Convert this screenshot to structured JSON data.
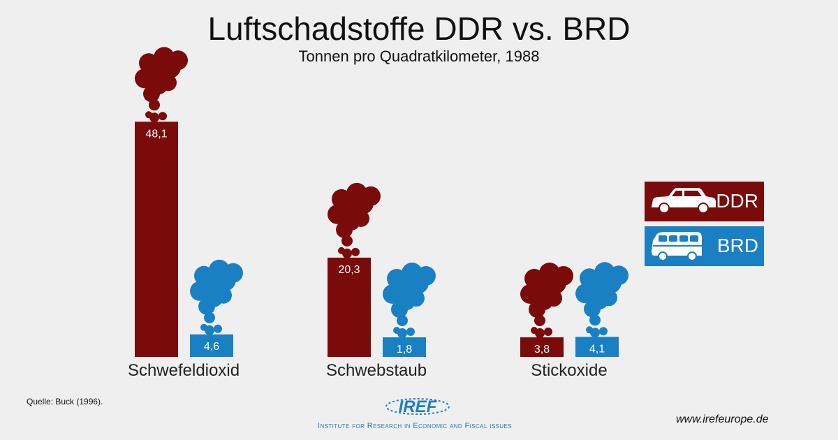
{
  "title": "Luftschadstoffe DDR vs. BRD",
  "subtitle": "Tonnen pro Quadratkilometer, 1988",
  "chart_data": {
    "type": "bar",
    "title": "Luftschadstoffe DDR vs. BRD",
    "subtitle": "Tonnen pro Quadratkilometer, 1988",
    "categories": [
      "Schwefeldioxid",
      "Schwebstaub",
      "Stickoxide"
    ],
    "series": [
      {
        "name": "DDR",
        "values": [
          48.1,
          20.3,
          3.8
        ],
        "labels": [
          "48,1",
          "20,3",
          "3,8"
        ],
        "color": "#7b0a0a"
      },
      {
        "name": "BRD",
        "values": [
          4.6,
          1.8,
          4.1
        ],
        "labels": [
          "4,6",
          "1,8",
          "4,1"
        ],
        "color": "#1a80c4"
      }
    ],
    "xlabel": "",
    "ylabel": "",
    "grid": false,
    "legend": "right"
  },
  "legend": {
    "ddr_label": "DDR",
    "brd_label": "BRD"
  },
  "footer": {
    "source": "Quelle: Buck (1996).",
    "website": "www.irefeurope.de",
    "logo_text": "IREF",
    "tagline": "Institute for Research in Economic and Fiscal issues"
  },
  "colors": {
    "ddr": "#7b0a0a",
    "brd": "#1a80c4",
    "background": "#efefef"
  }
}
